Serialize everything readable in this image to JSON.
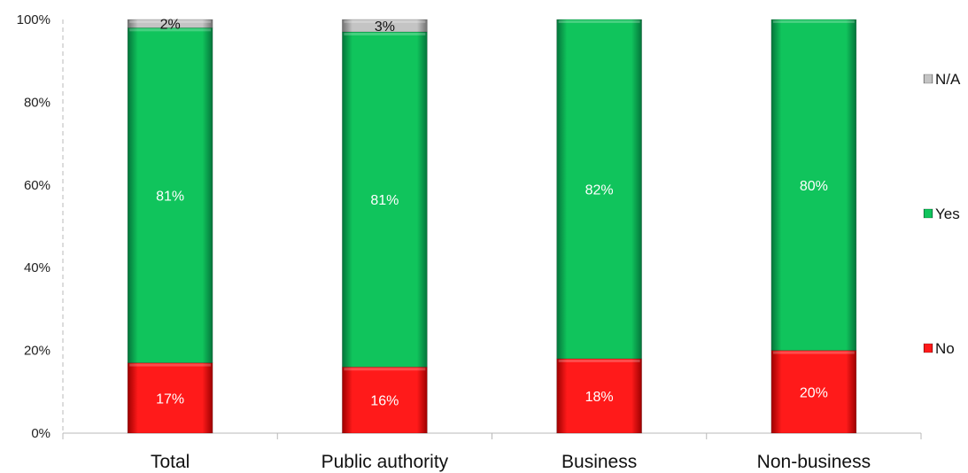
{
  "chart_data": {
    "type": "bar",
    "stacked": true,
    "categories": [
      "Total",
      "Public authority",
      "Business",
      "Non-business"
    ],
    "series": [
      {
        "name": "No",
        "values": [
          17,
          16,
          18,
          20
        ],
        "labels": [
          "17%",
          "16%",
          "18%",
          "20%"
        ],
        "color": "#ff0000"
      },
      {
        "name": "Yes",
        "values": [
          81,
          81,
          82,
          80
        ],
        "labels": [
          "81%",
          "81%",
          "82%",
          "80%"
        ],
        "color": "#0cbf57"
      },
      {
        "name": "N/A",
        "values": [
          2,
          3,
          0,
          0
        ],
        "labels": [
          "2%",
          "3%",
          "",
          ""
        ],
        "color": "#b5b5b5"
      }
    ],
    "ylim": [
      0,
      100
    ],
    "yticks": [
      "0%",
      "20%",
      "40%",
      "60%",
      "80%",
      "100%"
    ],
    "legend_order": [
      "N/A",
      "Yes",
      "No"
    ],
    "legend_position": "right",
    "grid": false,
    "title": "",
    "xlabel": "",
    "ylabel": ""
  }
}
